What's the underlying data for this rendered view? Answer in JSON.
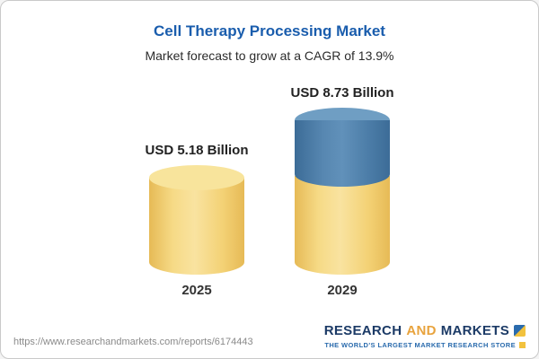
{
  "chart_data": {
    "type": "bar",
    "title": "Cell Therapy Processing Market",
    "subtitle": "Market forecast to grow at a CAGR of 13.9%",
    "categories": [
      "2025",
      "2029"
    ],
    "values": [
      5.18,
      8.73
    ],
    "unit": "USD Billion",
    "cagr": "13.9%",
    "bars": [
      {
        "category": "2025",
        "value": 5.18,
        "label": "USD 5.18 Billion",
        "segments": [
          {
            "name": "base",
            "value": 5.18,
            "color": "#f3d679"
          }
        ]
      },
      {
        "category": "2029",
        "value": 8.73,
        "label": "USD 8.73 Billion",
        "segments": [
          {
            "name": "base",
            "value": 5.18,
            "color": "#f3d679"
          },
          {
            "name": "growth",
            "value": 3.55,
            "color": "#4e7fa9"
          }
        ]
      }
    ],
    "colors": {
      "title": "#1a5dad",
      "bar_yellow": "#f3d679",
      "bar_blue": "#4e7fa9"
    },
    "legend": "none",
    "grid": false
  },
  "footer": {
    "url": "https://www.researchandmarkets.com/reports/6174443",
    "logo": {
      "research": "RESEARCH",
      "and": "AND",
      "markets": "MARKETS",
      "tagline": "THE WORLD'S LARGEST MARKET RESEARCH STORE"
    }
  }
}
